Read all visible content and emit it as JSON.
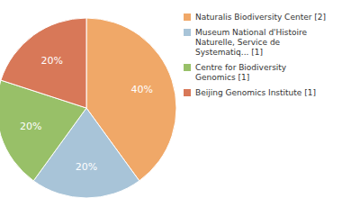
{
  "chart_data": {
    "type": "pie",
    "categories": [
      "Naturalis Biodiversity Center [2]",
      "Museum National d'Histoire\nNaturelle, Service de\nSystematiq... [1]",
      "Centre for Biodiversity\nGenomics [1]",
      "Beijing Genomics Institute [1]"
    ],
    "values": [
      40,
      20,
      20,
      20
    ],
    "value_labels": [
      "40%",
      "20%",
      "20%",
      "20%"
    ],
    "colors": [
      "#f0a868",
      "#a8c4d8",
      "#98c068",
      "#d87858"
    ],
    "data_labels": true,
    "legend": "right"
  }
}
